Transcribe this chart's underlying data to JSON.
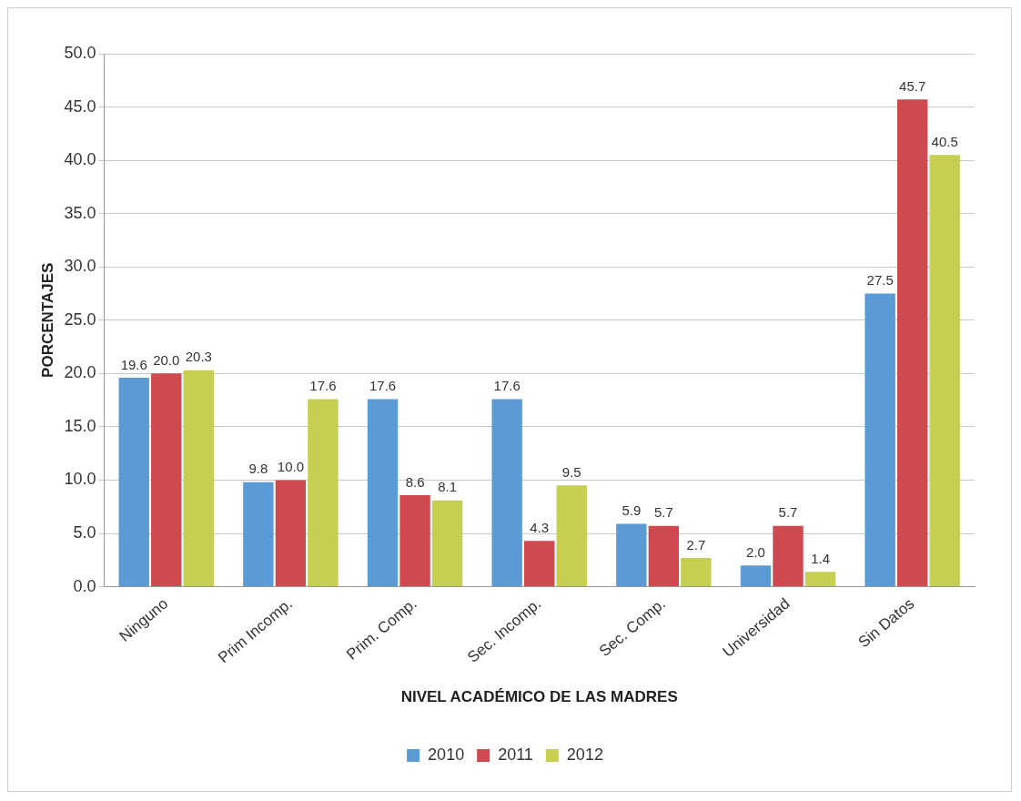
{
  "chart_data": {
    "type": "bar",
    "xlabel": "NIVEL ACADÉMICO DE LAS MADRES",
    "ylabel": "PORCENTAJES",
    "categories": [
      "Ninguno",
      "Prim Incomp.",
      "Prim. Comp.",
      "Sec. Incomp.",
      "Sec. Comp.",
      "Universidad",
      "Sin Datos"
    ],
    "series": [
      {
        "name": "2010",
        "color": "#5b9bd5",
        "values": [
          19.6,
          9.8,
          17.6,
          17.6,
          5.9,
          2.0,
          27.5
        ],
        "value_labels": [
          "19.6",
          "9.8",
          "17.6",
          "17.6",
          "5.9",
          "2.0",
          "27.5"
        ]
      },
      {
        "name": "2011",
        "color": "#cf4a50",
        "values": [
          20.0,
          10.0,
          8.6,
          4.3,
          5.7,
          5.7,
          45.7
        ],
        "value_labels": [
          "20.0",
          "10.0",
          "8.6",
          "4.3",
          "5.7",
          "5.7",
          "45.7"
        ]
      },
      {
        "name": "2012",
        "color": "#c6cf52",
        "values": [
          20.3,
          17.6,
          8.1,
          9.5,
          2.7,
          1.4,
          40.5
        ],
        "value_labels": [
          "20.3",
          "17.6",
          "8.1",
          "9.5",
          "2.7",
          "1.4",
          "40.5"
        ]
      }
    ],
    "ylim": [
      0,
      50
    ],
    "yticks": [
      {
        "value": 0,
        "label": "0.0"
      },
      {
        "value": 5,
        "label": "5.0"
      },
      {
        "value": 10,
        "label": "10.0"
      },
      {
        "value": 15,
        "label": "15.0"
      },
      {
        "value": 20,
        "label": "20.0"
      },
      {
        "value": 25,
        "label": "25.0"
      },
      {
        "value": 30,
        "label": "30.0"
      },
      {
        "value": 35,
        "label": "35.0"
      },
      {
        "value": 40,
        "label": "40.0"
      },
      {
        "value": 45,
        "label": "45.0"
      },
      {
        "value": 50,
        "label": "50.0"
      }
    ],
    "grid": "y",
    "legend": "bottom"
  }
}
